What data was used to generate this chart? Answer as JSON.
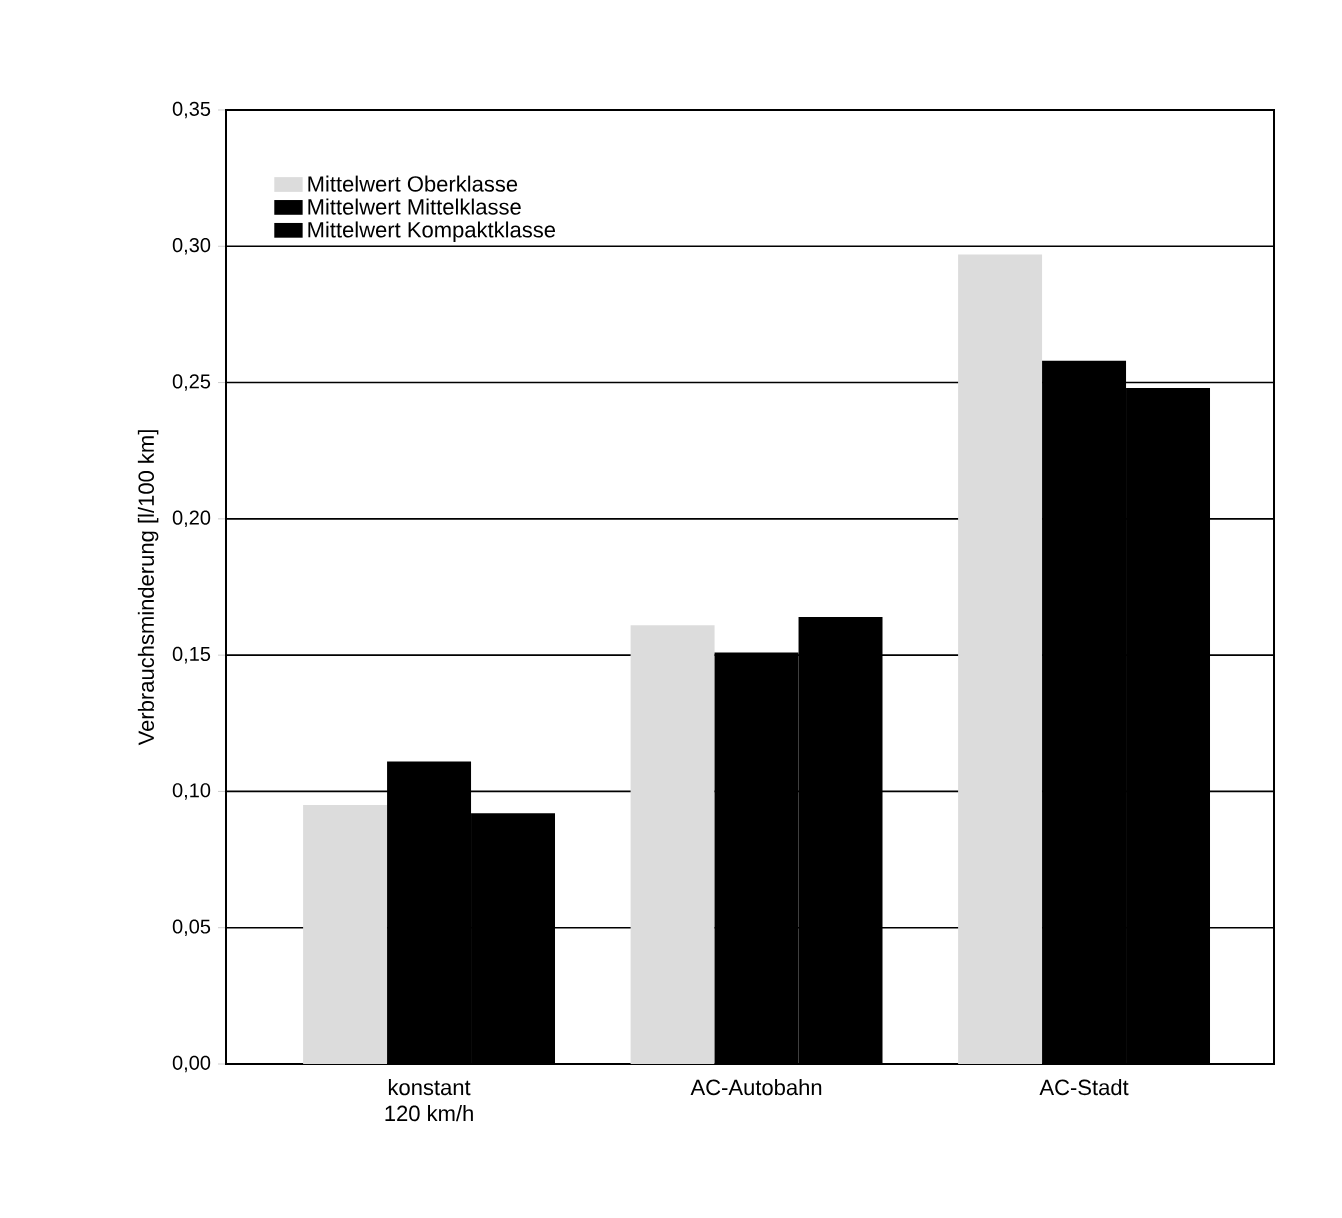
{
  "chart_data": {
    "type": "bar",
    "ylabel": "Verbrauchsminderung [l/100 km]",
    "categories": [
      "konstant\n120 km/h",
      "AC-Autobahn",
      "AC-Stadt"
    ],
    "series": [
      {
        "name": "Mittelwert Oberklasse",
        "color": "#dcdcdc",
        "values": [
          0.095,
          0.161,
          0.297
        ]
      },
      {
        "name": "Mittelwert Mittelklasse",
        "color": "#000000",
        "values": [
          0.111,
          0.151,
          0.258
        ]
      },
      {
        "name": "Mittelwert Kompaktklasse",
        "color": "#000000",
        "values": [
          0.092,
          0.164,
          0.248
        ]
      }
    ],
    "ylim": [
      0,
      0.35
    ],
    "yticks": [
      {
        "value": 0,
        "label": "0,00"
      },
      {
        "value": 0.05,
        "label": "0,05"
      },
      {
        "value": 0.1,
        "label": "0,10"
      },
      {
        "value": 0.15,
        "label": "0,15"
      },
      {
        "value": 0.2,
        "label": "0,20"
      },
      {
        "value": 0.25,
        "label": "0,25"
      },
      {
        "value": 0.3,
        "label": "0,30"
      },
      {
        "value": 0.35,
        "label": "0,35"
      }
    ],
    "grid": "y",
    "legend": "top left"
  }
}
